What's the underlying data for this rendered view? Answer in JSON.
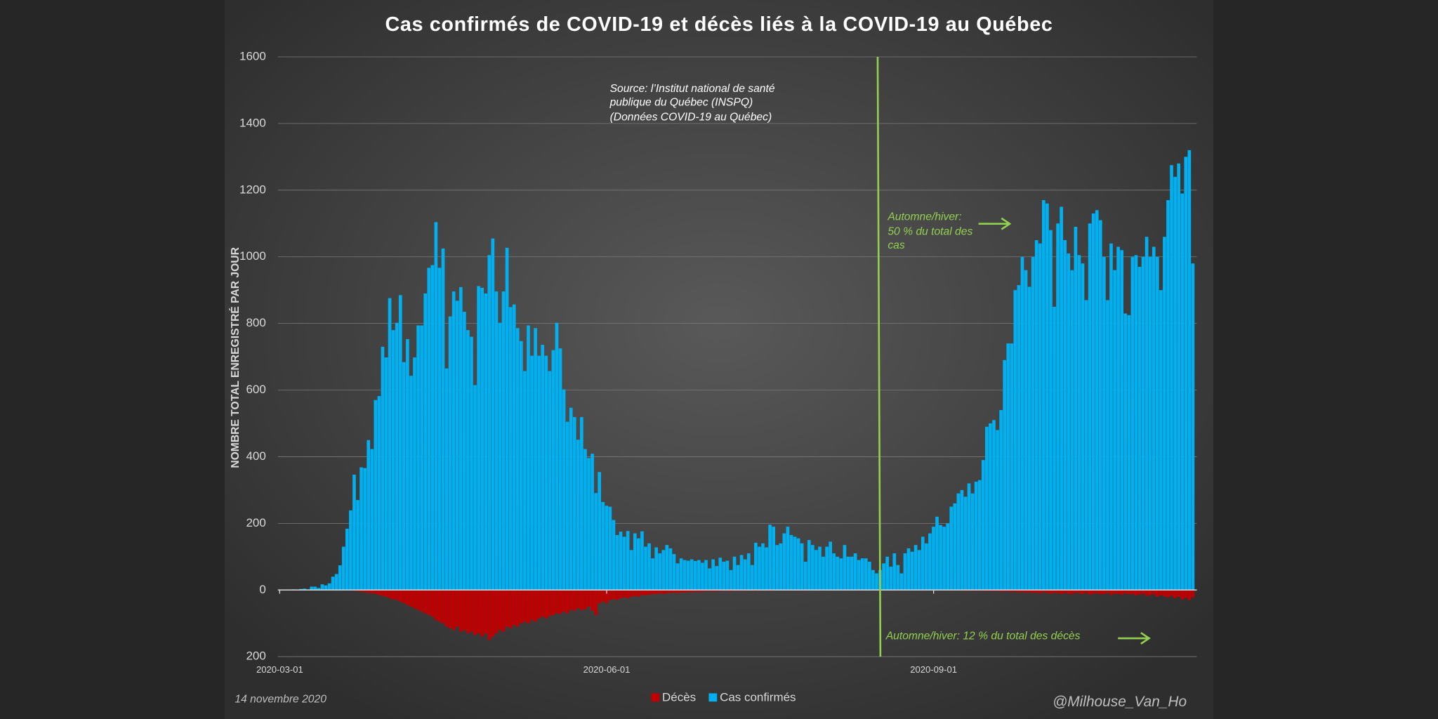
{
  "chart_data": {
    "type": "bar",
    "title": "Cas confirmés de COVID-19 et décès liés à la COVID-19 au Québec",
    "y_label": "NOMBRE TOTAL ENREGISTRÉ PAR JOUR",
    "source": [
      "Source: l’Institut national de santé",
      "publique du Québec (INSPQ)",
      "(Données COVID-19 au Québec)"
    ],
    "annotation_cases": [
      "Automne/hiver:",
      "50 % du total des",
      "cas"
    ],
    "annotation_deaths": "Automne/hiver: 12 % du total des décès",
    "date_note": "14 novembre 2020",
    "credit": "@Milhouse_Van_Ho",
    "ylim": [
      -200,
      1600
    ],
    "yticks": [
      {
        "value": -200,
        "label": "200"
      },
      0,
      200,
      400,
      600,
      800,
      1000,
      1200,
      1400,
      1600
    ],
    "grid": true,
    "xticks": [
      "2020-03-01",
      "2020-06-01",
      "2020-09-01"
    ],
    "x": [
      "2020-03-01",
      "2020-03-02",
      "2020-03-03",
      "2020-03-04",
      "2020-03-05",
      "2020-03-06",
      "2020-03-07",
      "2020-03-08",
      "2020-03-09",
      "2020-03-10",
      "2020-03-11",
      "2020-03-12",
      "2020-03-13",
      "2020-03-14",
      "2020-03-15",
      "2020-03-16",
      "2020-03-17",
      "2020-03-18",
      "2020-03-19",
      "2020-03-20",
      "2020-03-21",
      "2020-03-22",
      "2020-03-23",
      "2020-03-24",
      "2020-03-25",
      "2020-03-26",
      "2020-03-27",
      "2020-03-28",
      "2020-03-29",
      "2020-03-30",
      "2020-03-31",
      "2020-04-01",
      "2020-04-02",
      "2020-04-03",
      "2020-04-04",
      "2020-04-05",
      "2020-04-06",
      "2020-04-07",
      "2020-04-08",
      "2020-04-09",
      "2020-04-10",
      "2020-04-11",
      "2020-04-12",
      "2020-04-13",
      "2020-04-14",
      "2020-04-15",
      "2020-04-16",
      "2020-04-17",
      "2020-04-18",
      "2020-04-19",
      "2020-04-20",
      "2020-04-21",
      "2020-04-22",
      "2020-04-23",
      "2020-04-24",
      "2020-04-25",
      "2020-04-26",
      "2020-04-27",
      "2020-04-28",
      "2020-04-29",
      "2020-04-30",
      "2020-05-01",
      "2020-05-02",
      "2020-05-03",
      "2020-05-04",
      "2020-05-05",
      "2020-05-06",
      "2020-05-07",
      "2020-05-08",
      "2020-05-09",
      "2020-05-10",
      "2020-05-11",
      "2020-05-12",
      "2020-05-13",
      "2020-05-14",
      "2020-05-15",
      "2020-05-16",
      "2020-05-17",
      "2020-05-18",
      "2020-05-19",
      "2020-05-20",
      "2020-05-21",
      "2020-05-22",
      "2020-05-23",
      "2020-05-24",
      "2020-05-25",
      "2020-05-26",
      "2020-05-27",
      "2020-05-28",
      "2020-05-29",
      "2020-05-30",
      "2020-05-31",
      "2020-06-01",
      "2020-06-02",
      "2020-06-03",
      "2020-06-04",
      "2020-06-05",
      "2020-06-06",
      "2020-06-07",
      "2020-06-08",
      "2020-06-09",
      "2020-06-10",
      "2020-06-11",
      "2020-06-12",
      "2020-06-13",
      "2020-06-14",
      "2020-06-15",
      "2020-06-16",
      "2020-06-17",
      "2020-06-18",
      "2020-06-19",
      "2020-06-20",
      "2020-06-21",
      "2020-06-22",
      "2020-06-23",
      "2020-06-24",
      "2020-06-25",
      "2020-06-26",
      "2020-06-27",
      "2020-06-28",
      "2020-06-29",
      "2020-06-30",
      "2020-07-01",
      "2020-07-02",
      "2020-07-03",
      "2020-07-04",
      "2020-07-05",
      "2020-07-06",
      "2020-07-07",
      "2020-07-08",
      "2020-07-09",
      "2020-07-10",
      "2020-07-11",
      "2020-07-12",
      "2020-07-13",
      "2020-07-14",
      "2020-07-15",
      "2020-07-16",
      "2020-07-17",
      "2020-07-18",
      "2020-07-19",
      "2020-07-20",
      "2020-07-21",
      "2020-07-22",
      "2020-07-23",
      "2020-07-24",
      "2020-07-25",
      "2020-07-26",
      "2020-07-27",
      "2020-07-28",
      "2020-07-29",
      "2020-07-30",
      "2020-07-31",
      "2020-08-01",
      "2020-08-02",
      "2020-08-03",
      "2020-08-04",
      "2020-08-05",
      "2020-08-06",
      "2020-08-07",
      "2020-08-08",
      "2020-08-09",
      "2020-08-10",
      "2020-08-11",
      "2020-08-12",
      "2020-08-13",
      "2020-08-14",
      "2020-08-15",
      "2020-08-16",
      "2020-08-17",
      "2020-08-18",
      "2020-08-19",
      "2020-08-20",
      "2020-08-21",
      "2020-08-22",
      "2020-08-23",
      "2020-08-24",
      "2020-08-25",
      "2020-08-26",
      "2020-08-27",
      "2020-08-28",
      "2020-08-29",
      "2020-08-30",
      "2020-08-31",
      "2020-09-01",
      "2020-09-02",
      "2020-09-03",
      "2020-09-04",
      "2020-09-05",
      "2020-09-06",
      "2020-09-07",
      "2020-09-08",
      "2020-09-09",
      "2020-09-10",
      "2020-09-11",
      "2020-09-12",
      "2020-09-13",
      "2020-09-14",
      "2020-09-15",
      "2020-09-16",
      "2020-09-17",
      "2020-09-18",
      "2020-09-19",
      "2020-09-20",
      "2020-09-21",
      "2020-09-22",
      "2020-09-23",
      "2020-09-24",
      "2020-09-25",
      "2020-09-26",
      "2020-09-27",
      "2020-09-28",
      "2020-09-29",
      "2020-09-30",
      "2020-10-01",
      "2020-10-02",
      "2020-10-03",
      "2020-10-04",
      "2020-10-05",
      "2020-10-06",
      "2020-10-07",
      "2020-10-08",
      "2020-10-09",
      "2020-10-10",
      "2020-10-11",
      "2020-10-12",
      "2020-10-13",
      "2020-10-14",
      "2020-10-15",
      "2020-10-16",
      "2020-10-17",
      "2020-10-18",
      "2020-10-19",
      "2020-10-20",
      "2020-10-21",
      "2020-10-22",
      "2020-10-23",
      "2020-10-24",
      "2020-10-25",
      "2020-10-26",
      "2020-10-27",
      "2020-10-28",
      "2020-10-29",
      "2020-10-30",
      "2020-10-31",
      "2020-11-01",
      "2020-11-02",
      "2020-11-03",
      "2020-11-04",
      "2020-11-05",
      "2020-11-06",
      "2020-11-07",
      "2020-11-08",
      "2020-11-09",
      "2020-11-10",
      "2020-11-11",
      "2020-11-12",
      "2020-11-13"
    ],
    "series": [
      {
        "name": "Décès",
        "color": "#c00000",
        "values": [
          0,
          0,
          0,
          0,
          0,
          0,
          0,
          0,
          0,
          0,
          0,
          0,
          0,
          0,
          0,
          0,
          0,
          0,
          0,
          0,
          -1,
          -2,
          -4,
          -5,
          -7,
          -9,
          -10,
          -12,
          -15,
          -18,
          -20,
          -25,
          -28,
          -30,
          -35,
          -40,
          -45,
          -50,
          -55,
          -60,
          -65,
          -70,
          -75,
          -80,
          -90,
          -95,
          -100,
          -110,
          -115,
          -120,
          -110,
          -125,
          -120,
          -130,
          -125,
          -135,
          -130,
          -140,
          -130,
          -150,
          -140,
          -130,
          -120,
          -125,
          -110,
          -115,
          -105,
          -110,
          -100,
          -95,
          -100,
          -90,
          -95,
          -85,
          -80,
          -85,
          -78,
          -75,
          -70,
          -72,
          -65,
          -70,
          -60,
          -62,
          -55,
          -60,
          -58,
          -50,
          -62,
          -75,
          -40,
          -35,
          -40,
          -30,
          -28,
          -30,
          -25,
          -22,
          -25,
          -20,
          -18,
          -20,
          -15,
          -16,
          -14,
          -12,
          -13,
          -10,
          -12,
          -10,
          -9,
          -8,
          -10,
          -7,
          -8,
          -6,
          -7,
          -5,
          -6,
          -5,
          -4,
          -3,
          -5,
          -3,
          -4,
          -2,
          -3,
          -4,
          -2,
          -3,
          -2,
          -3,
          -1,
          -2,
          -3,
          -2,
          -1,
          -2,
          -3,
          -2,
          -1,
          -2,
          -1,
          -2,
          -1,
          -1,
          -2,
          -1,
          -2,
          -1,
          -1,
          -1,
          -2,
          -1,
          -1,
          -2,
          -1,
          -1,
          -1,
          -2,
          -1,
          -1,
          -1,
          -2,
          -1,
          -1,
          -1,
          -1,
          -2,
          -1,
          -1,
          -1,
          -1,
          -1,
          -2,
          -1,
          -1,
          -1,
          -1,
          -1,
          -1,
          -2,
          -1,
          -1,
          -2,
          -1,
          -1,
          -2,
          -1,
          -2,
          -2,
          -1,
          -2,
          -3,
          -2,
          -2,
          -3,
          -2,
          -3,
          -4,
          -3,
          -4,
          -3,
          -5,
          -4,
          -5,
          -6,
          -5,
          -7,
          -6,
          -8,
          -7,
          -9,
          -8,
          -10,
          -6,
          -9,
          -11,
          -8,
          -10,
          -12,
          -9,
          -11,
          -13,
          -8,
          -10,
          -12,
          -9,
          -14,
          -11,
          -10,
          -13,
          -12,
          -9,
          -15,
          -11,
          -12,
          -14,
          -10,
          -13,
          -12,
          -16,
          -14,
          -11,
          -18,
          -15,
          -13,
          -20,
          -16,
          -19,
          -22,
          -18,
          -25,
          -20,
          -28,
          -24,
          -30,
          -22
        ]
      },
      {
        "name": "Cas confirmés",
        "color": "#00b0f0",
        "values": [
          0,
          1,
          0,
          1,
          2,
          1,
          3,
          4,
          2,
          10,
          10,
          6,
          17,
          14,
          20,
          40,
          48,
          74,
          130,
          184,
          239,
          346,
          270,
          368,
          366,
          450,
          423,
          570,
          582,
          730,
          698,
          876,
          780,
          802,
          885,
          684,
          753,
          643,
          698,
          794,
          794,
          890,
          967,
          975,
          1104,
          967,
          1025,
          665,
          821,
          896,
          868,
          909,
          835,
          780,
          760,
          615,
          912,
          907,
          890,
          1005,
          1055,
          896,
          802,
          896,
          1027,
          849,
          857,
          786,
          747,
          657,
          794,
          703,
          786,
          703,
          736,
          703,
          657,
          720,
          802,
          725,
          602,
          505,
          547,
          519,
          451,
          519,
          423,
          396,
          409,
          291,
          354,
          264,
          253,
          250,
          210,
          165,
          175,
          160,
          177,
          120,
          170,
          155,
          176,
          130,
          140,
          95,
          128,
          110,
          120,
          135,
          125,
          108,
          80,
          95,
          90,
          88,
          92,
          87,
          90,
          82,
          90,
          65,
          92,
          72,
          97,
          85,
          88,
          60,
          100,
          75,
          105,
          92,
          110,
          75,
          142,
          130,
          140,
          128,
          196,
          190,
          135,
          140,
          170,
          190,
          165,
          160,
          155,
          140,
          85,
          150,
          135,
          120,
          130,
          100,
          130,
          145,
          110,
          100,
          95,
          135,
          100,
          100,
          110,
          90,
          95,
          95,
          85,
          60,
          50,
          60,
          80,
          100,
          70,
          110,
          75,
          50,
          110,
          125,
          115,
          135,
          120,
          160,
          140,
          170,
          190,
          220,
          195,
          190,
          200,
          250,
          260,
          290,
          300,
          280,
          320,
          290,
          325,
          330,
          390,
          490,
          500,
          510,
          480,
          540,
          690,
          740,
          740,
          900,
          915,
          1000,
          960,
          910,
          1000,
          1050,
          1040,
          1170,
          1160,
          1080,
          850,
          1100,
          1150,
          1050,
          1010,
          960,
          1090,
          1005,
          980,
          870,
          1100,
          1130,
          1140,
          1110,
          1000,
          870,
          1040,
          960,
          1030,
          1020,
          830,
          825,
          1000,
          1005,
          970,
          1000,
          1060,
          1000,
          1030,
          1000,
          900,
          1060,
          1170,
          1275,
          1240,
          1280,
          1190,
          1300,
          1320,
          980
        ]
      }
    ]
  }
}
